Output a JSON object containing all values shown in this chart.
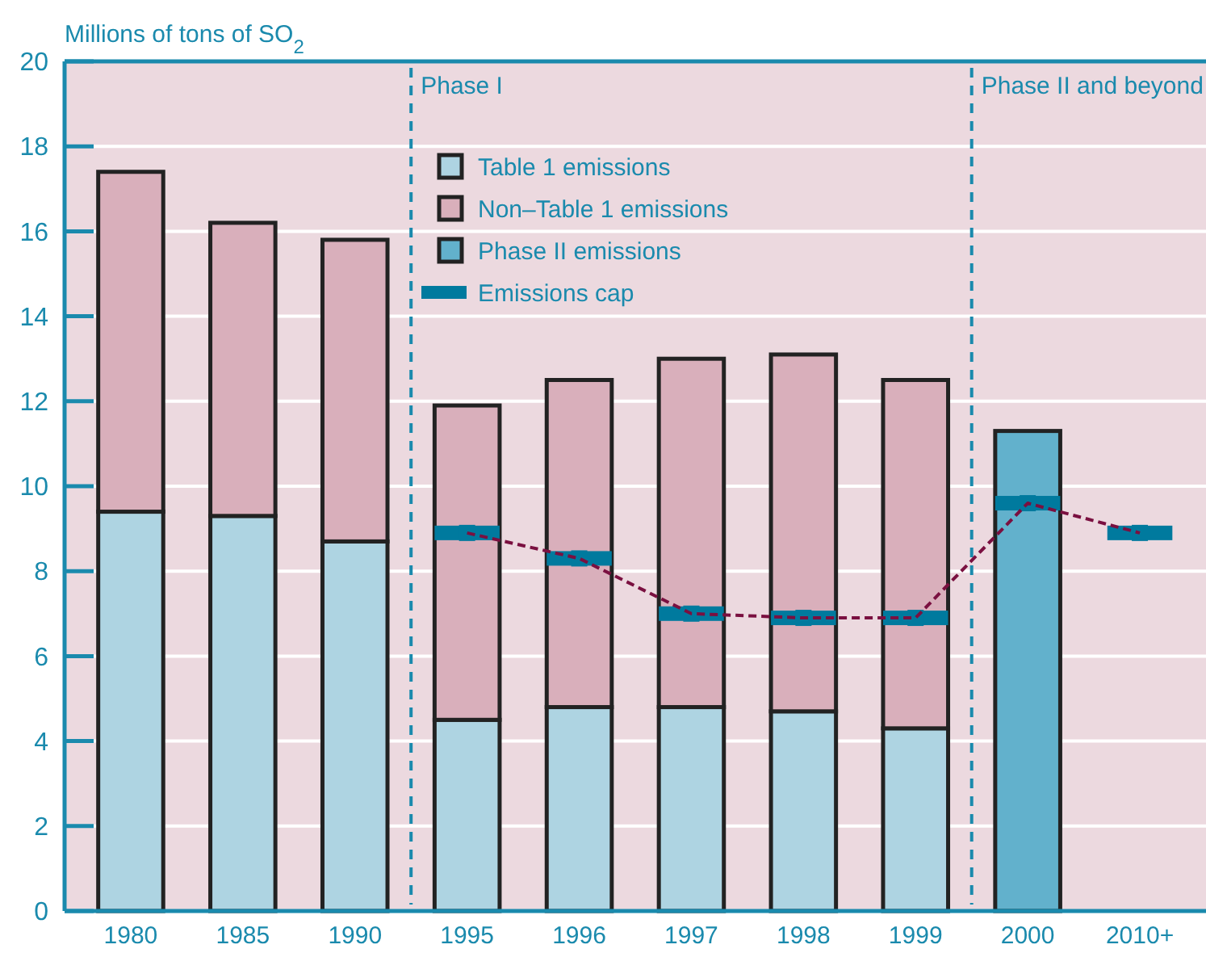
{
  "chart_data": {
    "type": "bar",
    "stacked": true,
    "ylabel": "Millions of tons of SO$_{2}$",
    "categories": [
      "1980",
      "1985",
      "1990",
      "1995",
      "1996",
      "1997",
      "1998",
      "1999",
      "2000",
      "2010+"
    ],
    "series": [
      {
        "name": "Table 1 emissions",
        "color": "#aed4e2",
        "values": [
          9.4,
          9.3,
          8.7,
          4.5,
          4.8,
          4.8,
          4.7,
          4.3,
          null,
          null
        ]
      },
      {
        "name": "Non–Table 1 emissions",
        "color": "#d9afbb",
        "values": [
          8.0,
          6.9,
          7.1,
          7.4,
          7.7,
          8.2,
          8.4,
          8.2,
          null,
          null
        ]
      },
      {
        "name": "Phase II emissions",
        "color": "#62b1cc",
        "values": [
          null,
          null,
          null,
          null,
          null,
          null,
          null,
          null,
          11.3,
          null
        ]
      },
      {
        "type": "line",
        "color": "#7a1040",
        "line_style": "dashed",
        "values": [
          null,
          null,
          null,
          8.9,
          8.3,
          7.0,
          6.9,
          6.9,
          9.6,
          8.9
        ]
      },
      {
        "type": "scatter",
        "name": "Emissions cap",
        "color": "#007a9e",
        "values": [
          null,
          null,
          null,
          8.9,
          8.3,
          7.0,
          6.9,
          6.9,
          9.6,
          8.9
        ]
      }
    ],
    "ylim": [
      0,
      20
    ],
    "yticks": [
      0,
      2,
      4,
      6,
      8,
      10,
      12,
      14,
      16,
      18,
      20
    ],
    "grid": "y",
    "legend": "top",
    "annotations": [
      "Phase I",
      "Phase II and beyond"
    ]
  }
}
